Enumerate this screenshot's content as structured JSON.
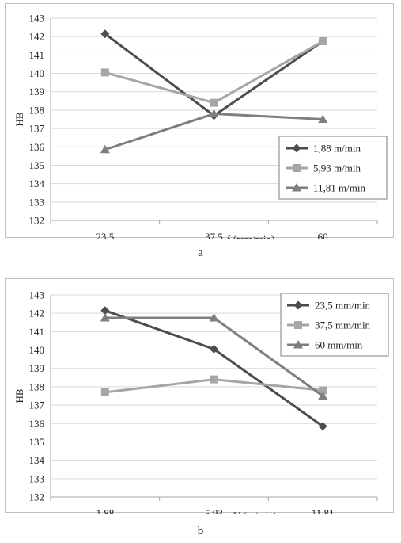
{
  "chart_data": [
    {
      "type": "line",
      "caption": "a",
      "xlabel": "f (mm/min)",
      "ylabel": "HB",
      "categories": [
        "23,5",
        "37,5",
        "60"
      ],
      "ylim": [
        132,
        143
      ],
      "yticks": [
        "132",
        "133",
        "134",
        "135",
        "136",
        "137",
        "138",
        "139",
        "140",
        "141",
        "142",
        "143"
      ],
      "grid": true,
      "legend_position": "right",
      "series": [
        {
          "name": "1,88 m/min",
          "marker": "diamond",
          "color": "#4d4d4d",
          "values": [
            142.15,
            137.7,
            141.75
          ]
        },
        {
          "name": "5,93 m/min",
          "marker": "square",
          "color": "#a6a6a6",
          "values": [
            140.05,
            138.4,
            141.75
          ]
        },
        {
          "name": "11,81 m/min",
          "marker": "triangle",
          "color": "#7f7f7f",
          "values": [
            135.85,
            137.8,
            137.5
          ]
        }
      ]
    },
    {
      "type": "line",
      "caption": "b",
      "xlabel": "V (m/min)",
      "ylabel": "HB",
      "categories": [
        "1,88",
        "5,93",
        "11,81"
      ],
      "ylim": [
        132,
        143
      ],
      "yticks": [
        "132",
        "133",
        "134",
        "135",
        "136",
        "137",
        "138",
        "139",
        "140",
        "141",
        "142",
        "143"
      ],
      "grid": true,
      "legend_position": "top-right",
      "series": [
        {
          "name": "23,5 mm/min",
          "marker": "diamond",
          "color": "#4d4d4d",
          "values": [
            142.15,
            140.05,
            135.85
          ]
        },
        {
          "name": "37,5 mm/min",
          "marker": "square",
          "color": "#a6a6a6",
          "values": [
            137.7,
            138.4,
            137.8
          ]
        },
        {
          "name": "60 mm/min",
          "marker": "triangle",
          "color": "#7f7f7f",
          "values": [
            141.75,
            141.75,
            137.5
          ]
        }
      ]
    }
  ]
}
